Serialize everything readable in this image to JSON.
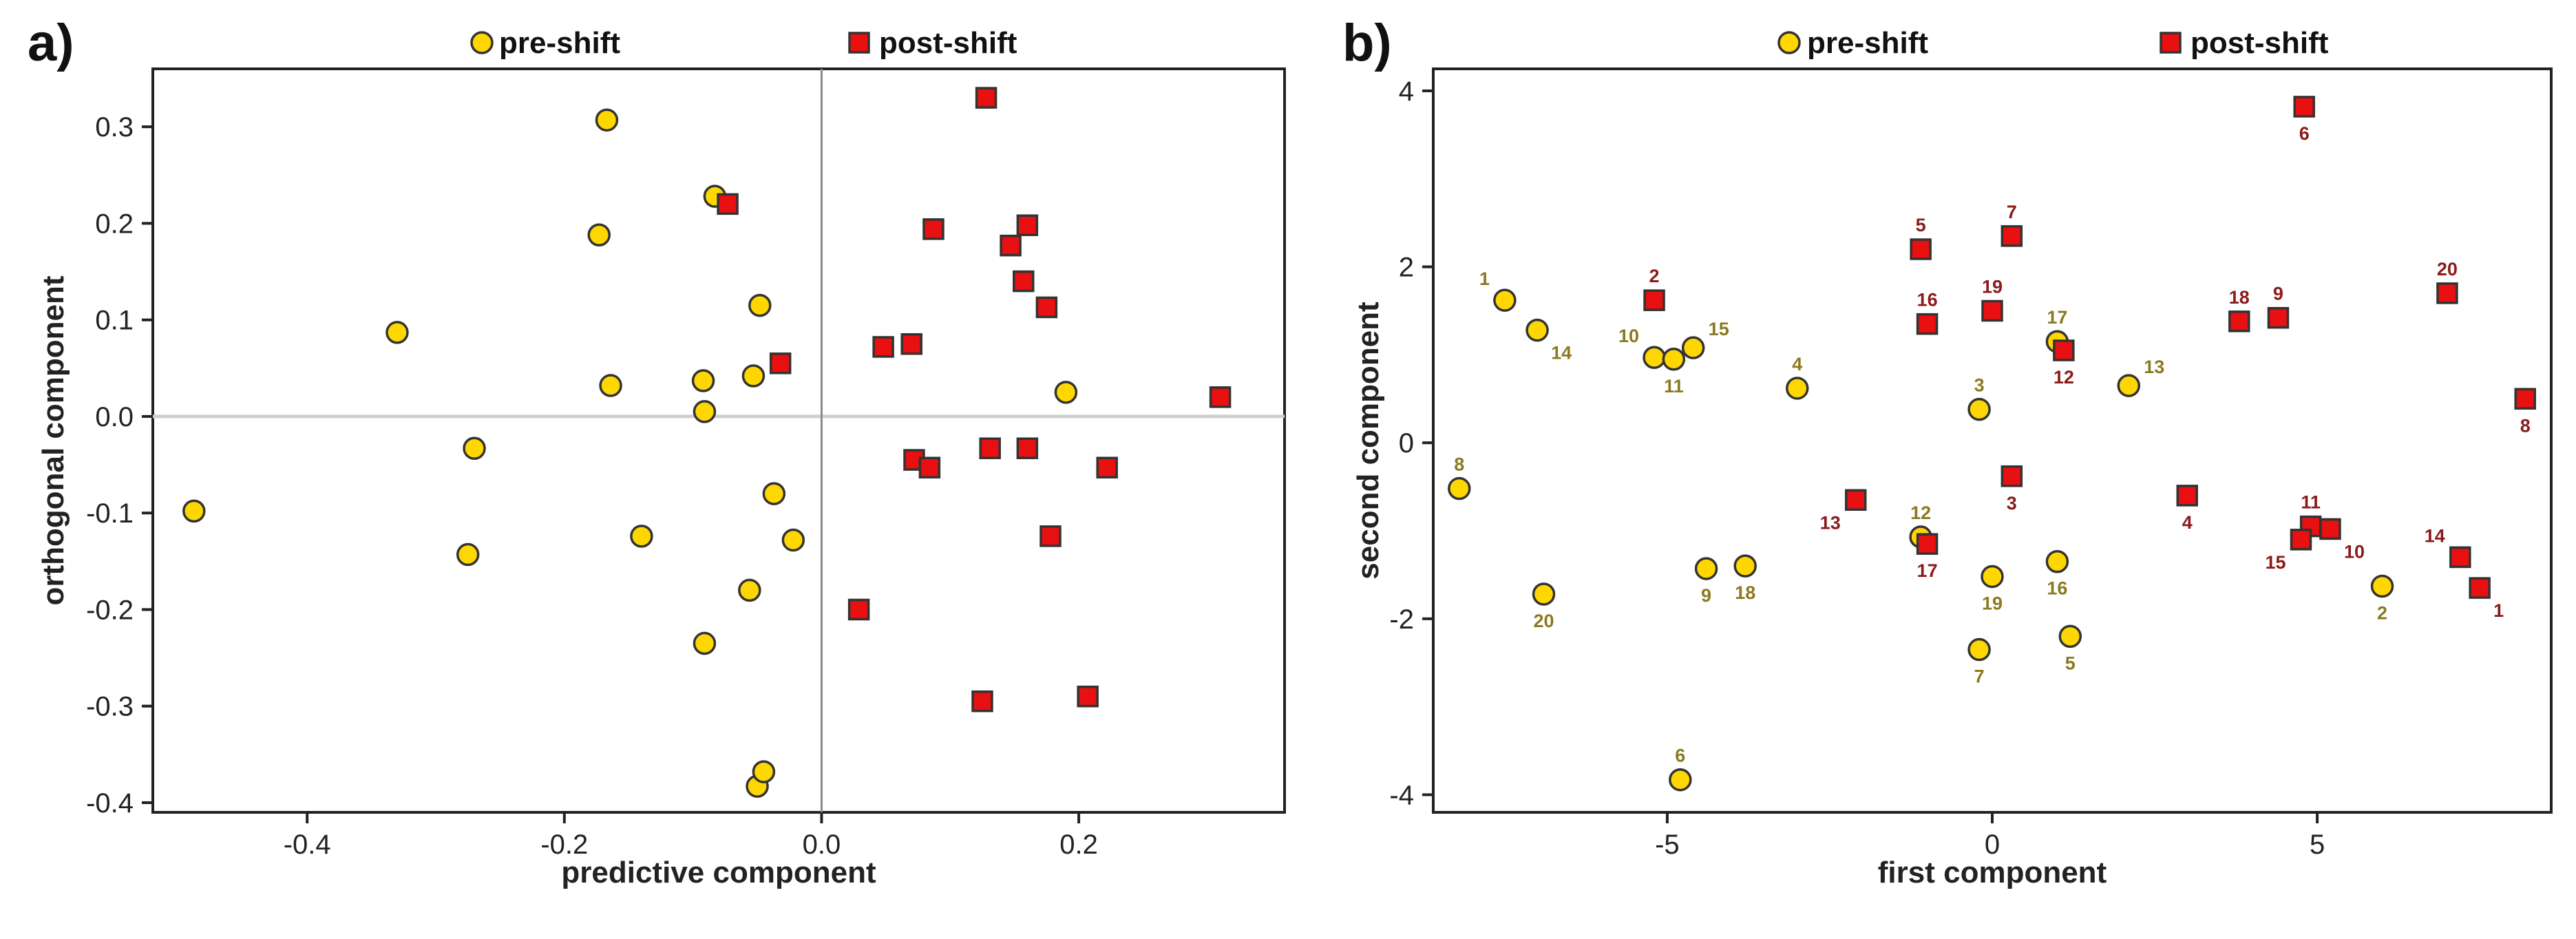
{
  "legend": {
    "pre_label": "pre-shift",
    "post_label": "post-shift"
  },
  "colors": {
    "pre": "#FFD700",
    "post": "#E81010",
    "pre_label": "#8B7A20",
    "post_label": "#8B1A1A"
  },
  "chart_data": [
    {
      "type": "scatter",
      "panel_label": "a)",
      "title": "",
      "xlabel": "predictive component",
      "ylabel": "orthogonal component",
      "xlim": [
        -0.52,
        0.36
      ],
      "ylim": [
        -0.41,
        0.36
      ],
      "xticks": [
        -0.4,
        -0.2,
        0.0,
        0.2
      ],
      "xtick_labels": [
        "-0.4",
        "-0.2",
        "0.0",
        "0.2"
      ],
      "yticks": [
        -0.4,
        -0.3,
        -0.2,
        -0.1,
        0.0,
        0.1,
        0.2,
        0.3
      ],
      "ytick_labels": [
        "-0.4",
        "-0.3",
        "-0.2",
        "-0.1",
        "0.0",
        "0.1",
        "0.2",
        "0.3"
      ],
      "series": [
        {
          "name": "pre-shift",
          "marker": "circle",
          "points": [
            {
              "x": -0.488,
              "y": -0.098
            },
            {
              "x": -0.33,
              "y": 0.087
            },
            {
              "x": -0.275,
              "y": -0.143
            },
            {
              "x": -0.27,
              "y": -0.033
            },
            {
              "x": -0.173,
              "y": 0.188
            },
            {
              "x": -0.167,
              "y": 0.307
            },
            {
              "x": -0.164,
              "y": 0.032
            },
            {
              "x": -0.14,
              "y": -0.124
            },
            {
              "x": -0.092,
              "y": 0.037
            },
            {
              "x": -0.091,
              "y": 0.005
            },
            {
              "x": -0.091,
              "y": -0.235
            },
            {
              "x": -0.083,
              "y": 0.228
            },
            {
              "x": -0.056,
              "y": -0.18
            },
            {
              "x": -0.053,
              "y": 0.042
            },
            {
              "x": -0.05,
              "y": -0.383
            },
            {
              "x": -0.048,
              "y": 0.115
            },
            {
              "x": -0.045,
              "y": -0.368
            },
            {
              "x": -0.037,
              "y": -0.08
            },
            {
              "x": -0.022,
              "y": -0.128
            },
            {
              "x": 0.19,
              "y": 0.025
            }
          ]
        },
        {
          "name": "post-shift",
          "marker": "square",
          "points": [
            {
              "x": -0.073,
              "y": 0.22
            },
            {
              "x": -0.032,
              "y": 0.055
            },
            {
              "x": 0.029,
              "y": -0.2
            },
            {
              "x": 0.048,
              "y": 0.072
            },
            {
              "x": 0.07,
              "y": 0.075
            },
            {
              "x": 0.072,
              "y": -0.045
            },
            {
              "x": 0.084,
              "y": -0.053
            },
            {
              "x": 0.087,
              "y": 0.194
            },
            {
              "x": 0.125,
              "y": -0.295
            },
            {
              "x": 0.128,
              "y": 0.33
            },
            {
              "x": 0.131,
              "y": -0.033
            },
            {
              "x": 0.147,
              "y": 0.177
            },
            {
              "x": 0.157,
              "y": 0.14
            },
            {
              "x": 0.16,
              "y": 0.198
            },
            {
              "x": 0.16,
              "y": -0.033
            },
            {
              "x": 0.175,
              "y": 0.113
            },
            {
              "x": 0.178,
              "y": -0.124
            },
            {
              "x": 0.207,
              "y": -0.29
            },
            {
              "x": 0.222,
              "y": -0.053
            },
            {
              "x": 0.31,
              "y": 0.02
            }
          ]
        }
      ]
    },
    {
      "type": "scatter",
      "panel_label": "b)",
      "title": "",
      "xlabel": "first component",
      "ylabel": "second component",
      "xlim": [
        -8.6,
        8.6
      ],
      "ylim": [
        -4.2,
        4.25
      ],
      "xticks": [
        -5,
        0,
        5
      ],
      "xtick_labels": [
        "-5",
        "0",
        "5"
      ],
      "yticks": [
        -4,
        -2,
        0,
        2,
        4
      ],
      "ytick_labels": [
        "-4",
        "-2",
        "0",
        "2",
        "4"
      ],
      "series": [
        {
          "name": "pre-shift",
          "marker": "circle",
          "points": [
            {
              "x": -7.5,
              "y": 1.62,
              "label": "1",
              "label_pos": "top-left"
            },
            {
              "x": 6.0,
              "y": -1.63,
              "label": "2",
              "label_pos": "bottom"
            },
            {
              "x": -0.2,
              "y": 0.38,
              "label": "3",
              "label_pos": "top"
            },
            {
              "x": -3.0,
              "y": 0.62,
              "label": "4",
              "label_pos": "top"
            },
            {
              "x": 1.2,
              "y": -2.2,
              "label": "5",
              "label_pos": "bottom"
            },
            {
              "x": -4.8,
              "y": -3.83,
              "label": "6",
              "label_pos": "top"
            },
            {
              "x": -0.2,
              "y": -2.35,
              "label": "7",
              "label_pos": "bottom"
            },
            {
              "x": -8.2,
              "y": -0.52,
              "label": "8",
              "label_pos": "top"
            },
            {
              "x": -4.4,
              "y": -1.43,
              "label": "9",
              "label_pos": "bottom"
            },
            {
              "x": -5.2,
              "y": 0.97,
              "label": "10",
              "label_pos": "top-left"
            },
            {
              "x": -4.9,
              "y": 0.95,
              "label": "11",
              "label_pos": "bottom"
            },
            {
              "x": -1.1,
              "y": -1.07,
              "label": "12",
              "label_pos": "top"
            },
            {
              "x": 2.1,
              "y": 0.65,
              "label": "13",
              "label_pos": "top-right"
            },
            {
              "x": -7.0,
              "y": 1.28,
              "label": "14",
              "label_pos": "bottom-right"
            },
            {
              "x": -4.6,
              "y": 1.08,
              "label": "15",
              "label_pos": "top-right"
            },
            {
              "x": 1.0,
              "y": -1.35,
              "label": "16",
              "label_pos": "bottom"
            },
            {
              "x": 1.0,
              "y": 1.15,
              "label": "17",
              "label_pos": "top"
            },
            {
              "x": -3.8,
              "y": -1.4,
              "label": "18",
              "label_pos": "bottom"
            },
            {
              "x": 0.0,
              "y": -1.52,
              "label": "19",
              "label_pos": "bottom"
            },
            {
              "x": -6.9,
              "y": -1.72,
              "label": "20",
              "label_pos": "bottom"
            }
          ]
        },
        {
          "name": "post-shift",
          "marker": "square",
          "points": [
            {
              "x": 7.5,
              "y": -1.65,
              "label": "1",
              "label_pos": "bottom-right"
            },
            {
              "x": -5.2,
              "y": 1.62,
              "label": "2",
              "label_pos": "top"
            },
            {
              "x": 0.3,
              "y": -0.38,
              "label": "3",
              "label_pos": "bottom"
            },
            {
              "x": 3.0,
              "y": -0.6,
              "label": "4",
              "label_pos": "bottom"
            },
            {
              "x": -1.1,
              "y": 2.2,
              "label": "5",
              "label_pos": "top"
            },
            {
              "x": 4.8,
              "y": 3.82,
              "label": "6",
              "label_pos": "bottom"
            },
            {
              "x": 0.3,
              "y": 2.35,
              "label": "7",
              "label_pos": "top"
            },
            {
              "x": 8.2,
              "y": 0.5,
              "label": "8",
              "label_pos": "bottom"
            },
            {
              "x": 4.4,
              "y": 1.42,
              "label": "9",
              "label_pos": "top"
            },
            {
              "x": 5.2,
              "y": -0.98,
              "label": "10",
              "label_pos": "bottom-right"
            },
            {
              "x": 4.9,
              "y": -0.95,
              "label": "11",
              "label_pos": "top"
            },
            {
              "x": 1.1,
              "y": 1.05,
              "label": "12",
              "label_pos": "bottom"
            },
            {
              "x": -2.1,
              "y": -0.65,
              "label": "13",
              "label_pos": "bottom-left"
            },
            {
              "x": 7.2,
              "y": -1.3,
              "label": "14",
              "label_pos": "top-left"
            },
            {
              "x": 4.75,
              "y": -1.1,
              "label": "15",
              "label_pos": "bottom-left"
            },
            {
              "x": -1.0,
              "y": 1.35,
              "label": "16",
              "label_pos": "top"
            },
            {
              "x": -1.0,
              "y": -1.15,
              "label": "17",
              "label_pos": "bottom"
            },
            {
              "x": 3.8,
              "y": 1.38,
              "label": "18",
              "label_pos": "top"
            },
            {
              "x": 0.0,
              "y": 1.5,
              "label": "19",
              "label_pos": "top"
            },
            {
              "x": 7.0,
              "y": 1.7,
              "label": "20",
              "label_pos": "top"
            }
          ]
        }
      ]
    }
  ]
}
